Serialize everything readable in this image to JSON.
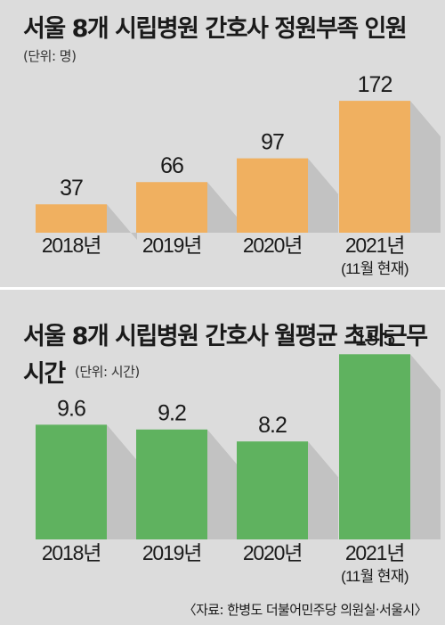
{
  "chart_data": [
    {
      "type": "bar",
      "title": "서울 8개 시립병원 간호사 정원부족 인원",
      "unit_label": "(단위: 명)",
      "categories": [
        "2018년",
        "2019년",
        "2020년",
        "2021년"
      ],
      "category_notes": [
        "",
        "",
        "",
        "(11월 현재)"
      ],
      "values": [
        37,
        66,
        97,
        172
      ],
      "value_labels": [
        "37",
        "66",
        "97",
        "172"
      ],
      "bar_color": "#f0b060",
      "ylim": [
        0,
        180
      ],
      "grid": false
    },
    {
      "type": "bar",
      "title": "서울 8개 시립병원 간호사 월평균 초과근무",
      "title_line2": "시간",
      "unit_label": "(단위: 시간)",
      "categories": [
        "2018년",
        "2019년",
        "2020년",
        "2021년"
      ],
      "category_notes": [
        "",
        "",
        "",
        "(11월 현재)"
      ],
      "values": [
        9.6,
        9.2,
        8.2,
        15.5
      ],
      "value_labels": [
        "9.6",
        "9.2",
        "8.2",
        "15.5"
      ],
      "bar_color": "#5fb25f",
      "grid": false
    }
  ],
  "source": "〈자료: 한병도 더불어민주당 의원실·서울시〉",
  "colors": {
    "background": "#dcdcdc",
    "shadow": "#c2c2c2",
    "text": "#1a1a1a"
  }
}
